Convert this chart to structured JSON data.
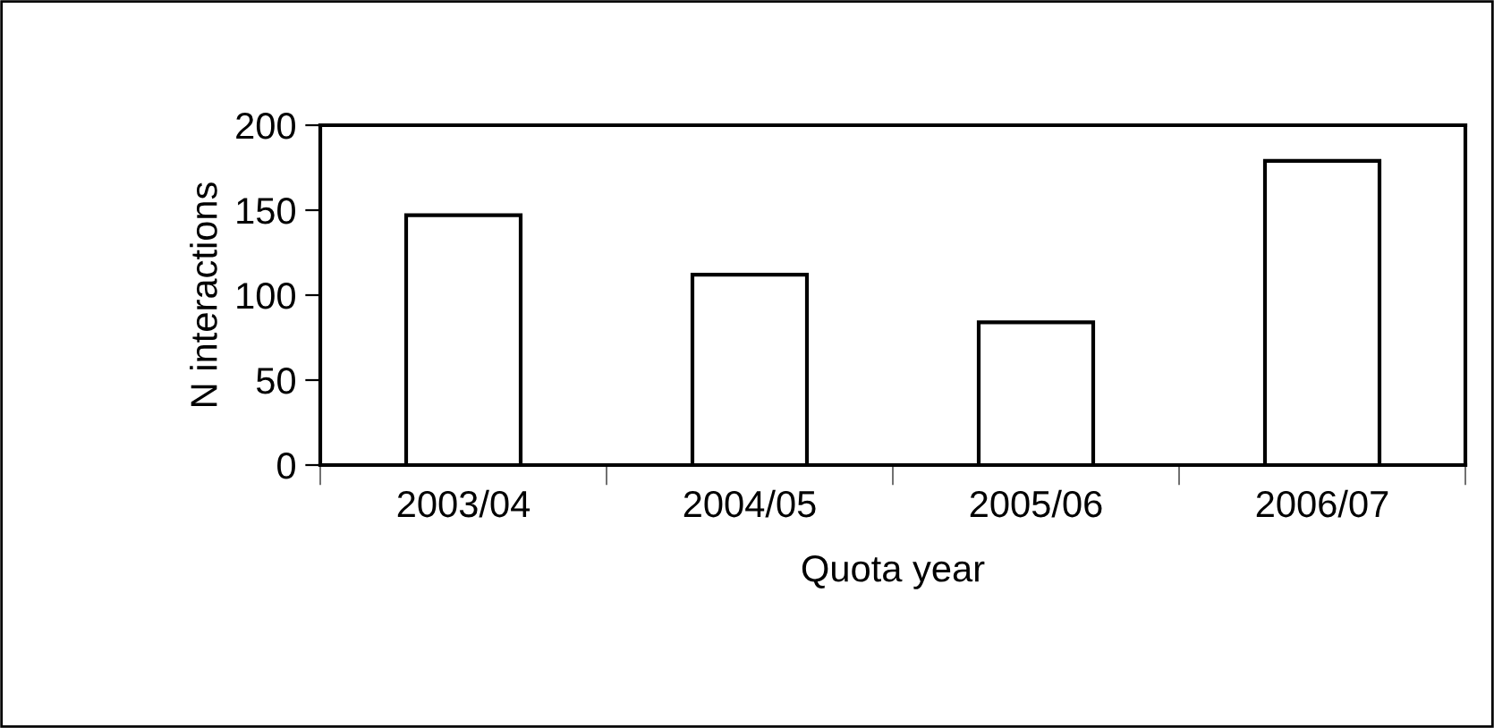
{
  "chart_data": {
    "type": "bar",
    "xlabel": "Quota year",
    "ylabel": "N interactions",
    "categories": [
      "2003/04",
      "2004/05",
      "2005/06",
      "2006/07"
    ],
    "values": [
      147,
      112,
      84,
      179
    ],
    "color": "#ffffff",
    "ylim": [
      0,
      200
    ],
    "yticks": [
      0,
      50,
      100,
      150,
      200
    ],
    "grid": false
  }
}
